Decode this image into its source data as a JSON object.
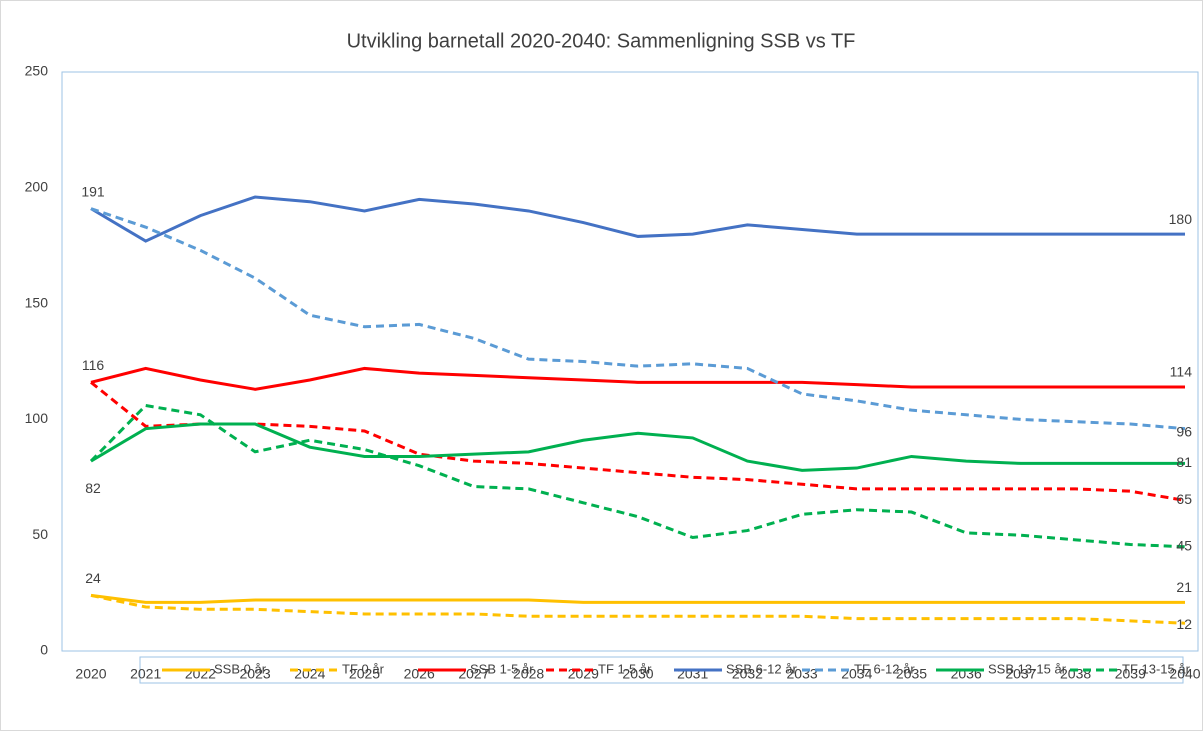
{
  "chart_data": {
    "type": "line",
    "title": "Utvikling barnetall 2020-2040: Sammenligning SSB vs TF",
    "categories": [
      "2020",
      "2021",
      "2022",
      "2023",
      "2024",
      "2025",
      "2026",
      "2027",
      "2028",
      "2029",
      "2030",
      "2031",
      "2032",
      "2033",
      "2034",
      "2035",
      "2036",
      "2037",
      "2038",
      "2039",
      "2040"
    ],
    "ylim": [
      0,
      250
    ],
    "yticks": [
      0,
      50,
      100,
      150,
      200,
      250
    ],
    "grid": false,
    "legend": "bottom",
    "series": [
      {
        "name": "SSB 0 år",
        "color": "#FFC000",
        "dashed": false,
        "values": [
          24,
          21,
          21,
          22,
          22,
          22,
          22,
          22,
          22,
          21,
          21,
          21,
          21,
          21,
          21,
          21,
          21,
          21,
          21,
          21,
          21
        ],
        "value_labels": [
          "24",
          null,
          null,
          null,
          null,
          null,
          null,
          null,
          null,
          null,
          null,
          null,
          null,
          null,
          null,
          null,
          null,
          null,
          null,
          null,
          "21"
        ]
      },
      {
        "name": "TF 0  år",
        "color": "#FFC000",
        "dashed": true,
        "values": [
          24,
          19,
          18,
          18,
          17,
          16,
          16,
          16,
          15,
          15,
          15,
          15,
          15,
          15,
          14,
          14,
          14,
          14,
          14,
          13,
          12
        ],
        "value_labels": [
          null,
          null,
          null,
          null,
          null,
          null,
          null,
          null,
          null,
          null,
          null,
          null,
          null,
          null,
          null,
          null,
          null,
          null,
          null,
          null,
          "12"
        ]
      },
      {
        "name": "SSB 1-5 år",
        "color": "#FF0000",
        "dashed": false,
        "values": [
          116,
          122,
          117,
          113,
          117,
          122,
          120,
          119,
          118,
          117,
          116,
          116,
          116,
          116,
          115,
          114,
          114,
          114,
          114,
          114,
          114
        ],
        "value_labels": [
          "116",
          null,
          null,
          null,
          null,
          null,
          null,
          null,
          null,
          null,
          null,
          null,
          null,
          null,
          null,
          null,
          null,
          null,
          null,
          null,
          "114"
        ]
      },
      {
        "name": "TF 1-5 år",
        "color": "#FF0000",
        "dashed": true,
        "values": [
          116,
          97,
          98,
          98,
          97,
          95,
          85,
          82,
          81,
          79,
          77,
          75,
          74,
          72,
          70,
          70,
          70,
          70,
          70,
          69,
          65
        ],
        "value_labels": [
          null,
          null,
          null,
          null,
          null,
          null,
          null,
          null,
          null,
          null,
          null,
          null,
          null,
          null,
          null,
          null,
          null,
          null,
          null,
          null,
          "65"
        ]
      },
      {
        "name": "SSB 6-12 år",
        "color": "#4472C4",
        "dashed": false,
        "values": [
          191,
          177,
          188,
          196,
          194,
          190,
          195,
          193,
          190,
          185,
          179,
          180,
          184,
          182,
          180,
          180,
          180,
          180,
          180,
          180,
          180
        ],
        "value_labels": [
          "191",
          null,
          null,
          null,
          null,
          null,
          null,
          null,
          null,
          null,
          null,
          null,
          null,
          null,
          null,
          null,
          null,
          null,
          null,
          null,
          "180"
        ]
      },
      {
        "name": "TF 6-12 år",
        "color": "#5B9BD5",
        "dashed": true,
        "values": [
          191,
          183,
          173,
          161,
          145,
          140,
          141,
          135,
          126,
          125,
          123,
          124,
          122,
          111,
          108,
          104,
          102,
          100,
          99,
          98,
          96
        ],
        "value_labels": [
          null,
          null,
          null,
          null,
          null,
          null,
          null,
          null,
          null,
          null,
          null,
          null,
          null,
          null,
          null,
          null,
          null,
          null,
          null,
          null,
          "96"
        ]
      },
      {
        "name": "SSB 13-15 år",
        "color": "#00B050",
        "dashed": false,
        "values": [
          82,
          96,
          98,
          98,
          88,
          84,
          84,
          85,
          86,
          91,
          94,
          92,
          82,
          78,
          79,
          84,
          82,
          81,
          81,
          81,
          81
        ],
        "value_labels": [
          "82",
          null,
          null,
          null,
          null,
          null,
          null,
          null,
          null,
          null,
          null,
          null,
          null,
          null,
          null,
          null,
          null,
          null,
          null,
          null,
          "81"
        ]
      },
      {
        "name": "TF 13-15 år",
        "color": "#00B050",
        "dashed": true,
        "values": [
          82,
          106,
          102,
          86,
          91,
          87,
          80,
          71,
          70,
          64,
          58,
          49,
          52,
          59,
          61,
          60,
          51,
          50,
          48,
          46,
          45
        ],
        "value_labels": [
          null,
          null,
          null,
          null,
          null,
          null,
          null,
          null,
          null,
          null,
          null,
          null,
          null,
          null,
          null,
          null,
          null,
          null,
          null,
          null,
          "45"
        ]
      }
    ]
  }
}
